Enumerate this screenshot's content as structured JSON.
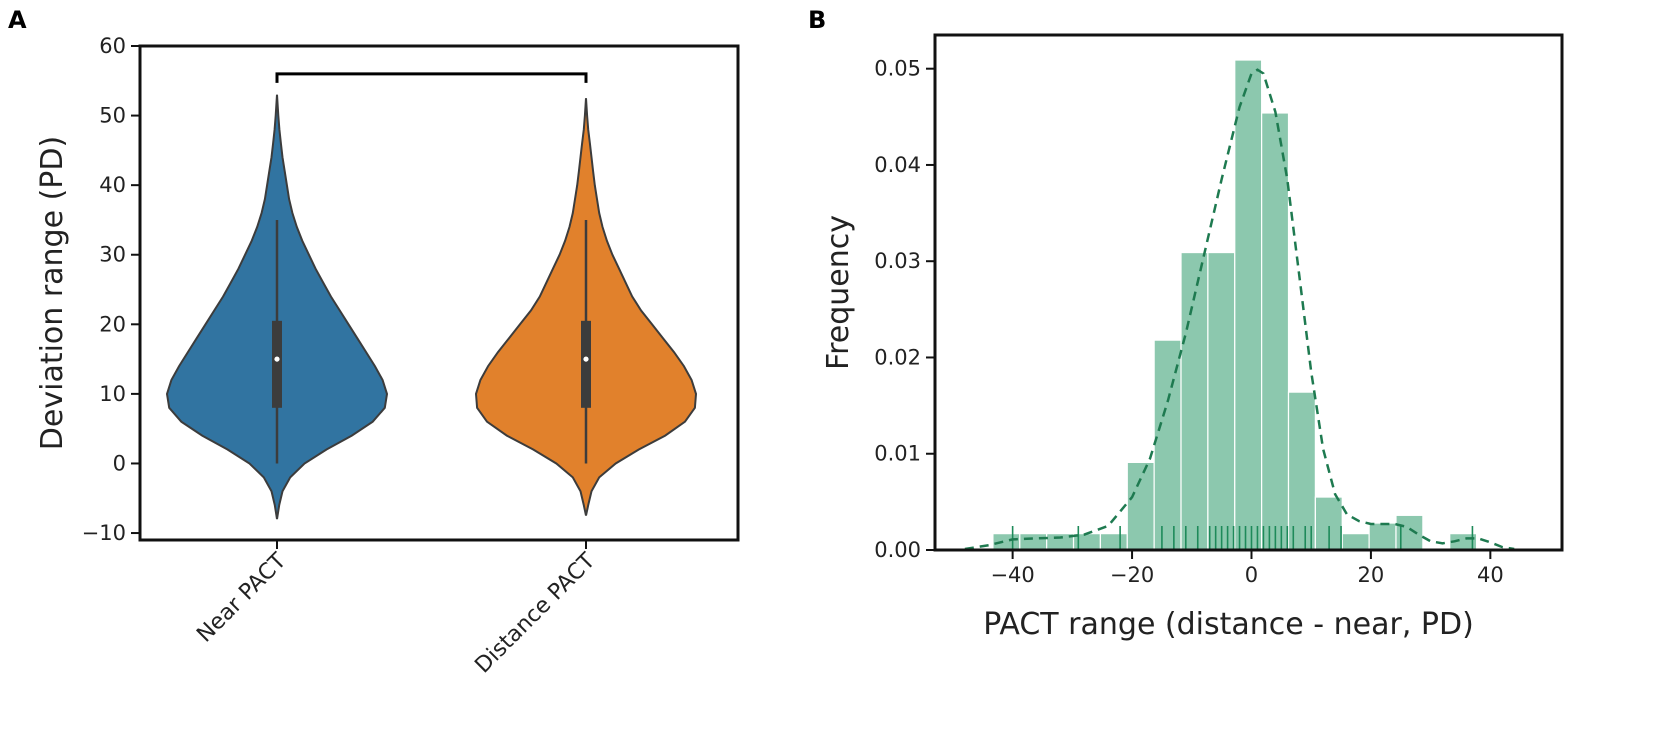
{
  "figure": {
    "panel_a_label": "A",
    "panel_b_label": "B"
  },
  "chart_data": [
    {
      "type": "violin",
      "panel": "A",
      "title": "",
      "xlabel": "",
      "ylabel": "Deviation range (PD)",
      "ylim": [
        -11,
        60
      ],
      "yticks": [
        -10,
        0,
        10,
        20,
        30,
        40,
        50,
        60
      ],
      "categories": [
        "Near PACT",
        "Distance PACT"
      ],
      "colors": [
        "#3174a1",
        "#e1812c"
      ],
      "series": [
        {
          "name": "Near PACT",
          "kde_min": -8,
          "kde_max": 53,
          "whisker_low": 0,
          "whisker_high": 35,
          "q1": 8,
          "median": 15,
          "q3": 20.5,
          "density_profile": [
            [
              -8,
              0.0
            ],
            [
              -6,
              0.02
            ],
            [
              -4,
              0.05
            ],
            [
              -2,
              0.12
            ],
            [
              0,
              0.25
            ],
            [
              2,
              0.45
            ],
            [
              4,
              0.68
            ],
            [
              6,
              0.87
            ],
            [
              8,
              0.98
            ],
            [
              10,
              1.0
            ],
            [
              12,
              0.96
            ],
            [
              14,
              0.89
            ],
            [
              16,
              0.81
            ],
            [
              18,
              0.73
            ],
            [
              20,
              0.65
            ],
            [
              22,
              0.57
            ],
            [
              24,
              0.49
            ],
            [
              26,
              0.42
            ],
            [
              28,
              0.35
            ],
            [
              30,
              0.29
            ],
            [
              32,
              0.23
            ],
            [
              34,
              0.18
            ],
            [
              36,
              0.14
            ],
            [
              38,
              0.11
            ],
            [
              40,
              0.09
            ],
            [
              42,
              0.07
            ],
            [
              44,
              0.05
            ],
            [
              46,
              0.035
            ],
            [
              48,
              0.022
            ],
            [
              50,
              0.012
            ],
            [
              53,
              0.0
            ]
          ]
        },
        {
          "name": "Distance PACT",
          "kde_min": -7.5,
          "kde_max": 52.5,
          "whisker_low": 0,
          "whisker_high": 35,
          "q1": 8,
          "median": 15,
          "q3": 20.5,
          "density_profile": [
            [
              -7.5,
              0.0
            ],
            [
              -6,
              0.02
            ],
            [
              -4,
              0.05
            ],
            [
              -2,
              0.12
            ],
            [
              0,
              0.27
            ],
            [
              2,
              0.48
            ],
            [
              4,
              0.72
            ],
            [
              6,
              0.9
            ],
            [
              8,
              0.99
            ],
            [
              10,
              1.0
            ],
            [
              12,
              0.96
            ],
            [
              14,
              0.89
            ],
            [
              16,
              0.8
            ],
            [
              18,
              0.7
            ],
            [
              20,
              0.6
            ],
            [
              22,
              0.5
            ],
            [
              24,
              0.42
            ],
            [
              26,
              0.36
            ],
            [
              28,
              0.3
            ],
            [
              30,
              0.24
            ],
            [
              32,
              0.19
            ],
            [
              34,
              0.15
            ],
            [
              36,
              0.12
            ],
            [
              38,
              0.1
            ],
            [
              40,
              0.08
            ],
            [
              42,
              0.065
            ],
            [
              44,
              0.05
            ],
            [
              46,
              0.035
            ],
            [
              48,
              0.02
            ],
            [
              50,
              0.01
            ],
            [
              52.5,
              0.0
            ]
          ]
        }
      ],
      "significance_bracket": {
        "y": 56,
        "between": [
          "Near PACT",
          "Distance PACT"
        ],
        "label": ""
      }
    },
    {
      "type": "histogram",
      "panel": "B",
      "title": "",
      "xlabel": "PACT range (distance - near, PD)",
      "ylabel": "Frequency",
      "xlim": [
        -53,
        52
      ],
      "ylim": [
        0,
        0.0535
      ],
      "xticks": [
        -40,
        -20,
        0,
        20,
        40
      ],
      "yticks": [
        0.0,
        0.01,
        0.02,
        0.03,
        0.04,
        0.05
      ],
      "ytick_labels": [
        "0.00",
        "0.01",
        "0.02",
        "0.03",
        "0.04",
        "0.05"
      ],
      "color": "#2e9a6c",
      "bins": [
        {
          "x0": -43.3,
          "x1": -38.8,
          "height": 0.0017
        },
        {
          "x0": -38.8,
          "x1": -34.3,
          "height": 0.0017
        },
        {
          "x0": -34.3,
          "x1": -29.8,
          "height": 0.0017
        },
        {
          "x0": -29.8,
          "x1": -25.3,
          "height": 0.0017
        },
        {
          "x0": -25.3,
          "x1": -20.8,
          "height": 0.0017
        },
        {
          "x0": -20.8,
          "x1": -16.3,
          "height": 0.0091
        },
        {
          "x0": -16.3,
          "x1": -11.8,
          "height": 0.0218
        },
        {
          "x0": -11.8,
          "x1": -7.3,
          "height": 0.0309
        },
        {
          "x0": -7.3,
          "x1": -2.8,
          "height": 0.0309
        },
        {
          "x0": -2.8,
          "x1": 1.7,
          "height": 0.0509
        },
        {
          "x0": 1.7,
          "x1": 6.2,
          "height": 0.0454
        },
        {
          "x0": 6.2,
          "x1": 10.7,
          "height": 0.0164
        },
        {
          "x0": 10.7,
          "x1": 15.2,
          "height": 0.0055
        },
        {
          "x0": 15.2,
          "x1": 19.7,
          "height": 0.0017
        },
        {
          "x0": 19.7,
          "x1": 24.2,
          "height": 0.0028
        },
        {
          "x0": 24.2,
          "x1": 28.7,
          "height": 0.0036
        },
        {
          "x0": 28.7,
          "x1": 33.2,
          "height": 0.0
        },
        {
          "x0": 33.2,
          "x1": 37.7,
          "height": 0.0017
        }
      ],
      "kde": {
        "x": [
          -48,
          -44,
          -40,
          -36,
          -32,
          -28,
          -24,
          -20,
          -17,
          -14,
          -11,
          -8,
          -5,
          -2,
          0,
          1,
          2,
          4,
          6,
          8,
          10,
          12,
          14,
          16,
          18,
          20,
          22,
          24,
          26,
          28,
          30,
          32,
          34,
          36,
          38,
          40,
          42,
          44
        ],
        "y": [
          0.0001,
          0.0005,
          0.0011,
          0.0012,
          0.0013,
          0.0016,
          0.0025,
          0.0055,
          0.0095,
          0.0155,
          0.0225,
          0.0305,
          0.0385,
          0.046,
          0.0495,
          0.0499,
          0.0495,
          0.0455,
          0.0385,
          0.0285,
          0.0185,
          0.0105,
          0.0058,
          0.0037,
          0.003,
          0.0027,
          0.0027,
          0.0027,
          0.0024,
          0.0016,
          0.0009,
          0.0007,
          0.0009,
          0.0012,
          0.0012,
          0.0008,
          0.0003,
          0.0001
        ]
      },
      "rug": [
        -40,
        -29,
        -22,
        -15,
        -13,
        -11,
        -9,
        -7,
        -6,
        -5,
        -4,
        -3,
        -2,
        -1,
        0,
        1,
        2,
        3,
        4,
        5,
        6,
        7,
        9,
        10,
        13,
        15,
        25,
        37
      ]
    }
  ]
}
